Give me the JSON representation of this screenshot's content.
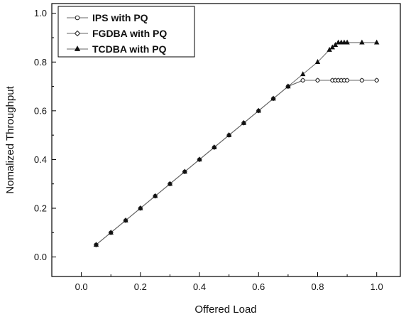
{
  "chart_data": {
    "type": "line",
    "title": "",
    "xlabel": "Offered Load",
    "ylabel": "Nomalized Throughput",
    "xlim": [
      -0.1,
      1.08
    ],
    "ylim": [
      -0.08,
      1.04
    ],
    "xticks": [
      0.0,
      0.2,
      0.4,
      0.6,
      0.8,
      1.0
    ],
    "xtick_labels": [
      "0.0",
      "0.2",
      "0.4",
      "0.6",
      "0.8",
      "1.0"
    ],
    "yticks": [
      0.0,
      0.2,
      0.4,
      0.6,
      0.8,
      1.0
    ],
    "ytick_labels": [
      "0.0",
      "0.2",
      "0.4",
      "0.6",
      "0.8",
      "1.0"
    ],
    "grid": false,
    "legend_position": "top-left",
    "colors": {
      "line": "#666666",
      "marker": "#222222",
      "axis": "#000000"
    },
    "series": [
      {
        "name": "IPS with PQ",
        "marker": "circle",
        "x": [
          0.05,
          0.1,
          0.15,
          0.2,
          0.25,
          0.3,
          0.35,
          0.4,
          0.45,
          0.5,
          0.55,
          0.6,
          0.65,
          0.7,
          0.75,
          0.8,
          0.85,
          0.86,
          0.87,
          0.88,
          0.89,
          0.9,
          0.95,
          1.0
        ],
        "y": [
          0.05,
          0.1,
          0.15,
          0.2,
          0.25,
          0.3,
          0.35,
          0.4,
          0.45,
          0.5,
          0.55,
          0.6,
          0.65,
          0.7,
          0.725,
          0.725,
          0.725,
          0.725,
          0.725,
          0.725,
          0.725,
          0.725,
          0.725,
          0.725
        ]
      },
      {
        "name": "FGDBA with PQ",
        "marker": "diamond",
        "x": [
          0.05,
          0.1,
          0.15,
          0.2,
          0.25,
          0.3,
          0.35,
          0.4,
          0.45,
          0.5,
          0.55,
          0.6,
          0.65,
          0.7,
          0.75,
          0.8,
          0.85,
          0.86,
          0.87,
          0.88,
          0.89,
          0.9,
          0.95,
          1.0
        ],
        "y": [
          0.05,
          0.1,
          0.15,
          0.2,
          0.25,
          0.3,
          0.35,
          0.4,
          0.45,
          0.5,
          0.55,
          0.6,
          0.65,
          0.7,
          0.725,
          0.725,
          0.725,
          0.725,
          0.725,
          0.725,
          0.725,
          0.725,
          0.725,
          0.725
        ]
      },
      {
        "name": "TCDBA with PQ",
        "marker": "triangle",
        "x": [
          0.05,
          0.1,
          0.15,
          0.2,
          0.25,
          0.3,
          0.35,
          0.4,
          0.45,
          0.5,
          0.55,
          0.6,
          0.65,
          0.7,
          0.75,
          0.8,
          0.84,
          0.85,
          0.86,
          0.87,
          0.88,
          0.89,
          0.9,
          0.95,
          1.0
        ],
        "y": [
          0.05,
          0.1,
          0.15,
          0.2,
          0.25,
          0.3,
          0.35,
          0.4,
          0.45,
          0.5,
          0.55,
          0.6,
          0.65,
          0.7,
          0.75,
          0.8,
          0.85,
          0.86,
          0.87,
          0.88,
          0.88,
          0.88,
          0.88,
          0.88,
          0.88
        ]
      }
    ]
  }
}
